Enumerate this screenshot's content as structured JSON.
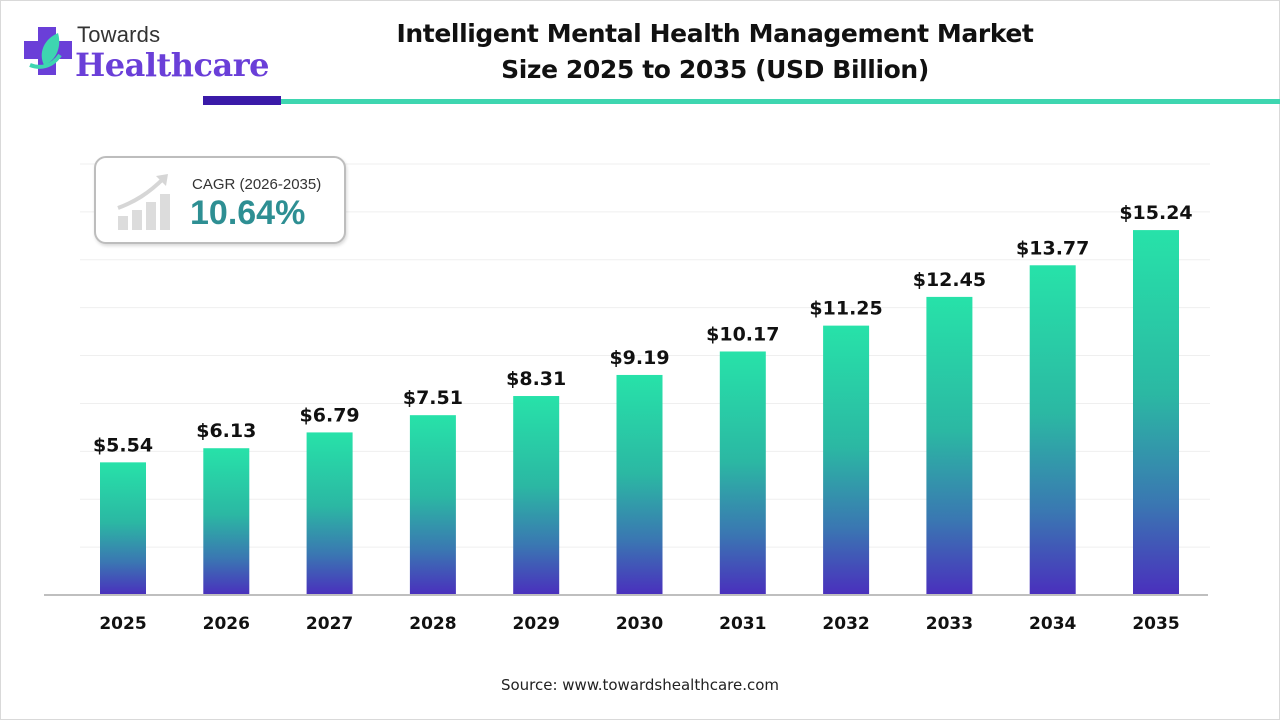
{
  "brand": {
    "line1": "Towards",
    "line2": "Healthcare",
    "colors": {
      "purple": "#6a3fd8",
      "teal": "#3ed6b0",
      "dark_accent": "#3a1aa8"
    }
  },
  "header": {
    "title_line1": "Intelligent Mental Health Management Market",
    "title_line2": "Size 2025 to 2035 (USD Billion)"
  },
  "cagr": {
    "icon": "growth-chart-icon",
    "label": "CAGR (2026-2035)",
    "value": "10.64%"
  },
  "footer": {
    "source": "Source: www.towardshealthcare.com"
  },
  "chart_data": {
    "type": "bar",
    "title": "Intelligent Mental Health Management Market Size 2025 to 2035 (USD Billion)",
    "xlabel": "",
    "ylabel": "",
    "categories": [
      "2025",
      "2026",
      "2027",
      "2028",
      "2029",
      "2030",
      "2031",
      "2032",
      "2033",
      "2034",
      "2035"
    ],
    "values": [
      5.54,
      6.13,
      6.79,
      7.51,
      8.31,
      9.19,
      10.17,
      11.25,
      12.45,
      13.77,
      15.24
    ],
    "data_labels": [
      "$5.54",
      "$6.13",
      "$6.79",
      "$7.51",
      "$8.31",
      "$9.19",
      "$10.17",
      "$11.25",
      "$12.45",
      "$13.77",
      "$15.24"
    ],
    "ylim": [
      0,
      18
    ],
    "grid": true,
    "y_axis_visible": false,
    "legend": "none",
    "bar_gradient": {
      "top": "#27e2a9",
      "bottom": "#4a2fbd"
    }
  }
}
